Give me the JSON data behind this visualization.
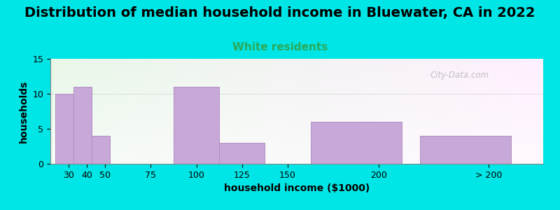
{
  "title": "Distribution of median household income in Bluewater, CA in 2022",
  "subtitle": "White residents",
  "xlabel": "household income ($1000)",
  "ylabel": "households",
  "bar_labels": [
    "30",
    "40",
    "50",
    "75",
    "100",
    "125",
    "150",
    "200",
    "> 200"
  ],
  "bar_left_edges": [
    22.5,
    32.5,
    42.5,
    57.5,
    87.5,
    112.5,
    137.5,
    162.5,
    222.5
  ],
  "bar_widths": [
    10,
    10,
    10,
    25,
    25,
    25,
    25,
    50,
    50
  ],
  "bar_heights": [
    10,
    11,
    4,
    0,
    11,
    3,
    0,
    6,
    4
  ],
  "bar_color": "#c8a8d8",
  "bar_edgecolor": "#b090c0",
  "ylim": [
    0,
    15
  ],
  "yticks": [
    0,
    5,
    10,
    15
  ],
  "xlim": [
    20,
    290
  ],
  "xtick_positions": [
    30,
    40,
    50,
    75,
    100,
    125,
    150,
    200,
    260
  ],
  "xtick_labels": [
    "30",
    "40",
    "50",
    "75",
    "100",
    "125",
    "150",
    "200",
    "> 200"
  ],
  "background_outer": "#00e5e5",
  "title_fontsize": 14,
  "subtitle_fontsize": 11,
  "subtitle_color": "#2aaa5a",
  "axis_label_fontsize": 10,
  "tick_fontsize": 9,
  "watermark": "City-Data.com"
}
